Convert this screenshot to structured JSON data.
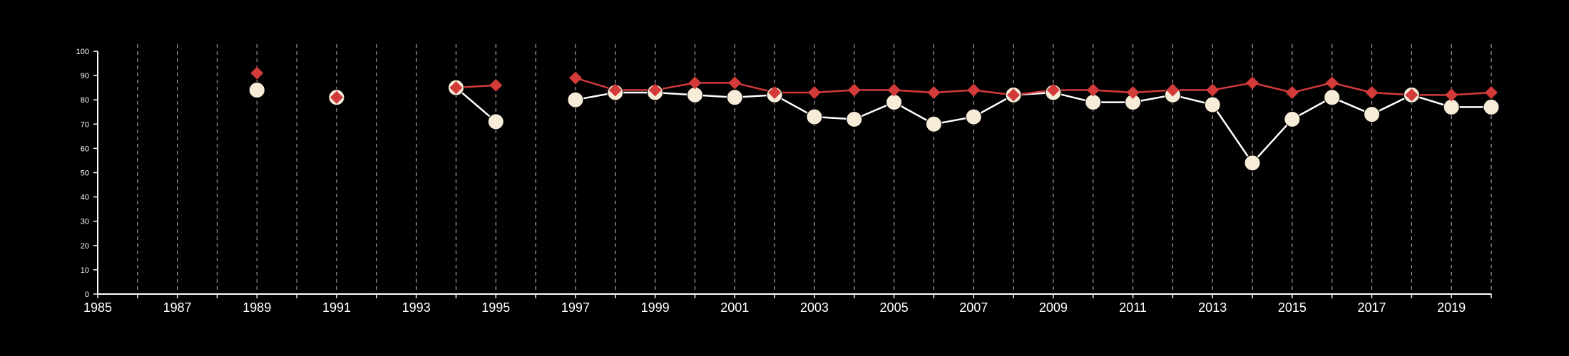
{
  "chart_data": {
    "type": "line",
    "title": "",
    "xlabel": "",
    "ylabel": "",
    "xlim": [
      1985,
      2020
    ],
    "ylim": [
      0,
      100
    ],
    "grid": "vertical-dashed",
    "legend": "none",
    "x_ticks": [
      1985,
      1987,
      1989,
      1991,
      1993,
      1995,
      1997,
      1999,
      2001,
      2003,
      2005,
      2007,
      2009,
      2011,
      2013,
      2015,
      2017,
      2019
    ],
    "y_ticks": [
      0,
      10,
      20,
      30,
      40,
      50,
      60,
      70,
      80,
      90,
      100
    ],
    "colors": {
      "background": "#000000",
      "axis": "#ffffff",
      "grid": "#aaaaaa",
      "red_series": "#d33a3a",
      "cream_series": "#f7ecd8",
      "cream_line": "#ffffff"
    },
    "series": [
      {
        "marker": "diamond",
        "color": "#d33a3a",
        "points": [
          {
            "x": 1989,
            "y": 91
          },
          {
            "x": 1991,
            "y": 81
          },
          {
            "x": 1994,
            "y": 85
          },
          {
            "x": 1995,
            "y": 86
          },
          {
            "x": 1997,
            "y": 89
          },
          {
            "x": 1998,
            "y": 84
          },
          {
            "x": 1999,
            "y": 84
          },
          {
            "x": 2000,
            "y": 87
          },
          {
            "x": 2001,
            "y": 87
          },
          {
            "x": 2002,
            "y": 83
          },
          {
            "x": 2003,
            "y": 83
          },
          {
            "x": 2004,
            "y": 84
          },
          {
            "x": 2005,
            "y": 84
          },
          {
            "x": 2006,
            "y": 83
          },
          {
            "x": 2007,
            "y": 84
          },
          {
            "x": 2008,
            "y": 82
          },
          {
            "x": 2009,
            "y": 84
          },
          {
            "x": 2010,
            "y": 84
          },
          {
            "x": 2011,
            "y": 83
          },
          {
            "x": 2012,
            "y": 84
          },
          {
            "x": 2013,
            "y": 84
          },
          {
            "x": 2014,
            "y": 87
          },
          {
            "x": 2015,
            "y": 83
          },
          {
            "x": 2016,
            "y": 87
          },
          {
            "x": 2017,
            "y": 83
          },
          {
            "x": 2018,
            "y": 82
          },
          {
            "x": 2019,
            "y": 82
          },
          {
            "x": 2020,
            "y": 83
          }
        ]
      },
      {
        "marker": "circle",
        "color": "#f7ecd8",
        "points": [
          {
            "x": 1989,
            "y": 84
          },
          {
            "x": 1991,
            "y": 81
          },
          {
            "x": 1994,
            "y": 85
          },
          {
            "x": 1995,
            "y": 71
          },
          {
            "x": 1997,
            "y": 80
          },
          {
            "x": 1998,
            "y": 83
          },
          {
            "x": 1999,
            "y": 83
          },
          {
            "x": 2000,
            "y": 82
          },
          {
            "x": 2001,
            "y": 81
          },
          {
            "x": 2002,
            "y": 82
          },
          {
            "x": 2003,
            "y": 73
          },
          {
            "x": 2004,
            "y": 72
          },
          {
            "x": 2005,
            "y": 79
          },
          {
            "x": 2006,
            "y": 70
          },
          {
            "x": 2007,
            "y": 73
          },
          {
            "x": 2008,
            "y": 82
          },
          {
            "x": 2009,
            "y": 83
          },
          {
            "x": 2010,
            "y": 79
          },
          {
            "x": 2011,
            "y": 79
          },
          {
            "x": 2012,
            "y": 82
          },
          {
            "x": 2013,
            "y": 78
          },
          {
            "x": 2014,
            "y": 54
          },
          {
            "x": 2015,
            "y": 72
          },
          {
            "x": 2016,
            "y": 81
          },
          {
            "x": 2017,
            "y": 74
          },
          {
            "x": 2018,
            "y": 82
          },
          {
            "x": 2019,
            "y": 77
          },
          {
            "x": 2020,
            "y": 77
          }
        ]
      }
    ]
  }
}
